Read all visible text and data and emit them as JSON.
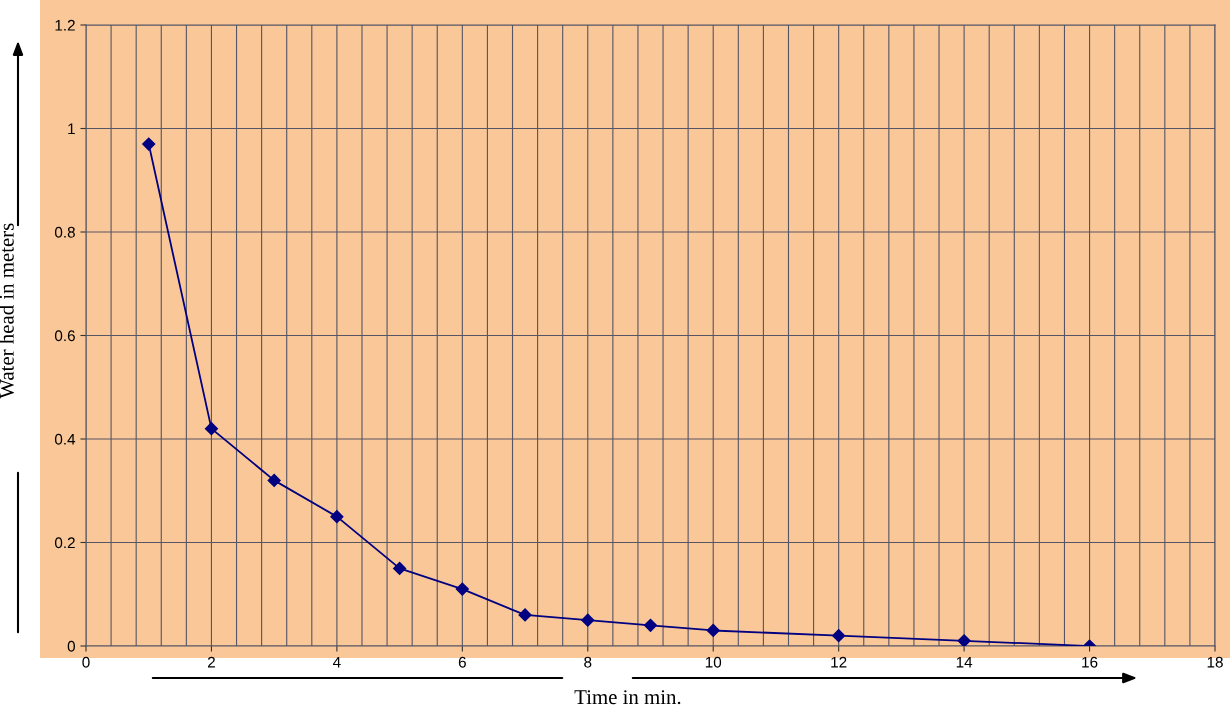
{
  "chart_data": {
    "type": "line",
    "xlabel": "Time in min.",
    "ylabel": "Water head in meters",
    "x": [
      1,
      2,
      3,
      4,
      5,
      6,
      7,
      8,
      9,
      10,
      12,
      14,
      16
    ],
    "series": [
      {
        "color": "#000080",
        "values": [
          0.97,
          0.42,
          0.32,
          0.25,
          0.15,
          0.11,
          0.06,
          0.05,
          0.04,
          0.03,
          0.02,
          0.01,
          0
        ]
      }
    ],
    "xlim": [
      0,
      18
    ],
    "xticks": [
      0,
      {
        "value": 0.4,
        "label": null
      },
      {
        "value": 0.8,
        "label": null
      },
      {
        "value": 1.2,
        "label": null
      },
      {
        "value": 1.6,
        "label": null
      },
      2,
      {
        "value": 2.4,
        "label": null
      },
      {
        "value": 2.8,
        "label": null
      },
      {
        "value": 3.2,
        "label": null
      },
      {
        "value": 3.6,
        "label": null
      },
      4,
      {
        "value": 4.4,
        "label": null
      },
      {
        "value": 4.8,
        "label": null
      },
      {
        "value": 5.2,
        "label": null
      },
      {
        "value": 5.6,
        "label": null
      },
      6,
      {
        "value": 6.4,
        "label": null
      },
      {
        "value": 6.8,
        "label": null
      },
      {
        "value": 7.2,
        "label": null
      },
      {
        "value": 7.6,
        "label": null
      },
      8,
      {
        "value": 8.4,
        "label": null
      },
      {
        "value": 8.8,
        "label": null
      },
      {
        "value": 9.2,
        "label": null
      },
      {
        "value": 9.6,
        "label": null
      },
      10,
      {
        "value": 10.4,
        "label": null
      },
      {
        "value": 10.8,
        "label": null
      },
      {
        "value": 11.2,
        "label": null
      },
      {
        "value": 11.6,
        "label": null
      },
      12,
      {
        "value": 12.4,
        "label": null
      },
      {
        "value": 12.8,
        "label": null
      },
      {
        "value": 13.2,
        "label": null
      },
      {
        "value": 13.6,
        "label": null
      },
      14,
      {
        "value": 14.4,
        "label": null
      },
      {
        "value": 14.8,
        "label": null
      },
      {
        "value": 15.2,
        "label": null
      },
      {
        "value": 15.6,
        "label": null
      },
      16,
      {
        "value": 16.4,
        "label": null
      },
      {
        "value": 16.8,
        "label": null
      },
      {
        "value": 17.2,
        "label": null
      },
      {
        "value": 17.6,
        "label": null
      },
      18
    ],
    "ylim": [
      0,
      1.2
    ],
    "yticks": [
      0,
      0.2,
      0.4,
      0.6,
      0.8,
      1,
      1.2
    ],
    "grid": true,
    "marker": "diamond",
    "line_style": "solid"
  }
}
